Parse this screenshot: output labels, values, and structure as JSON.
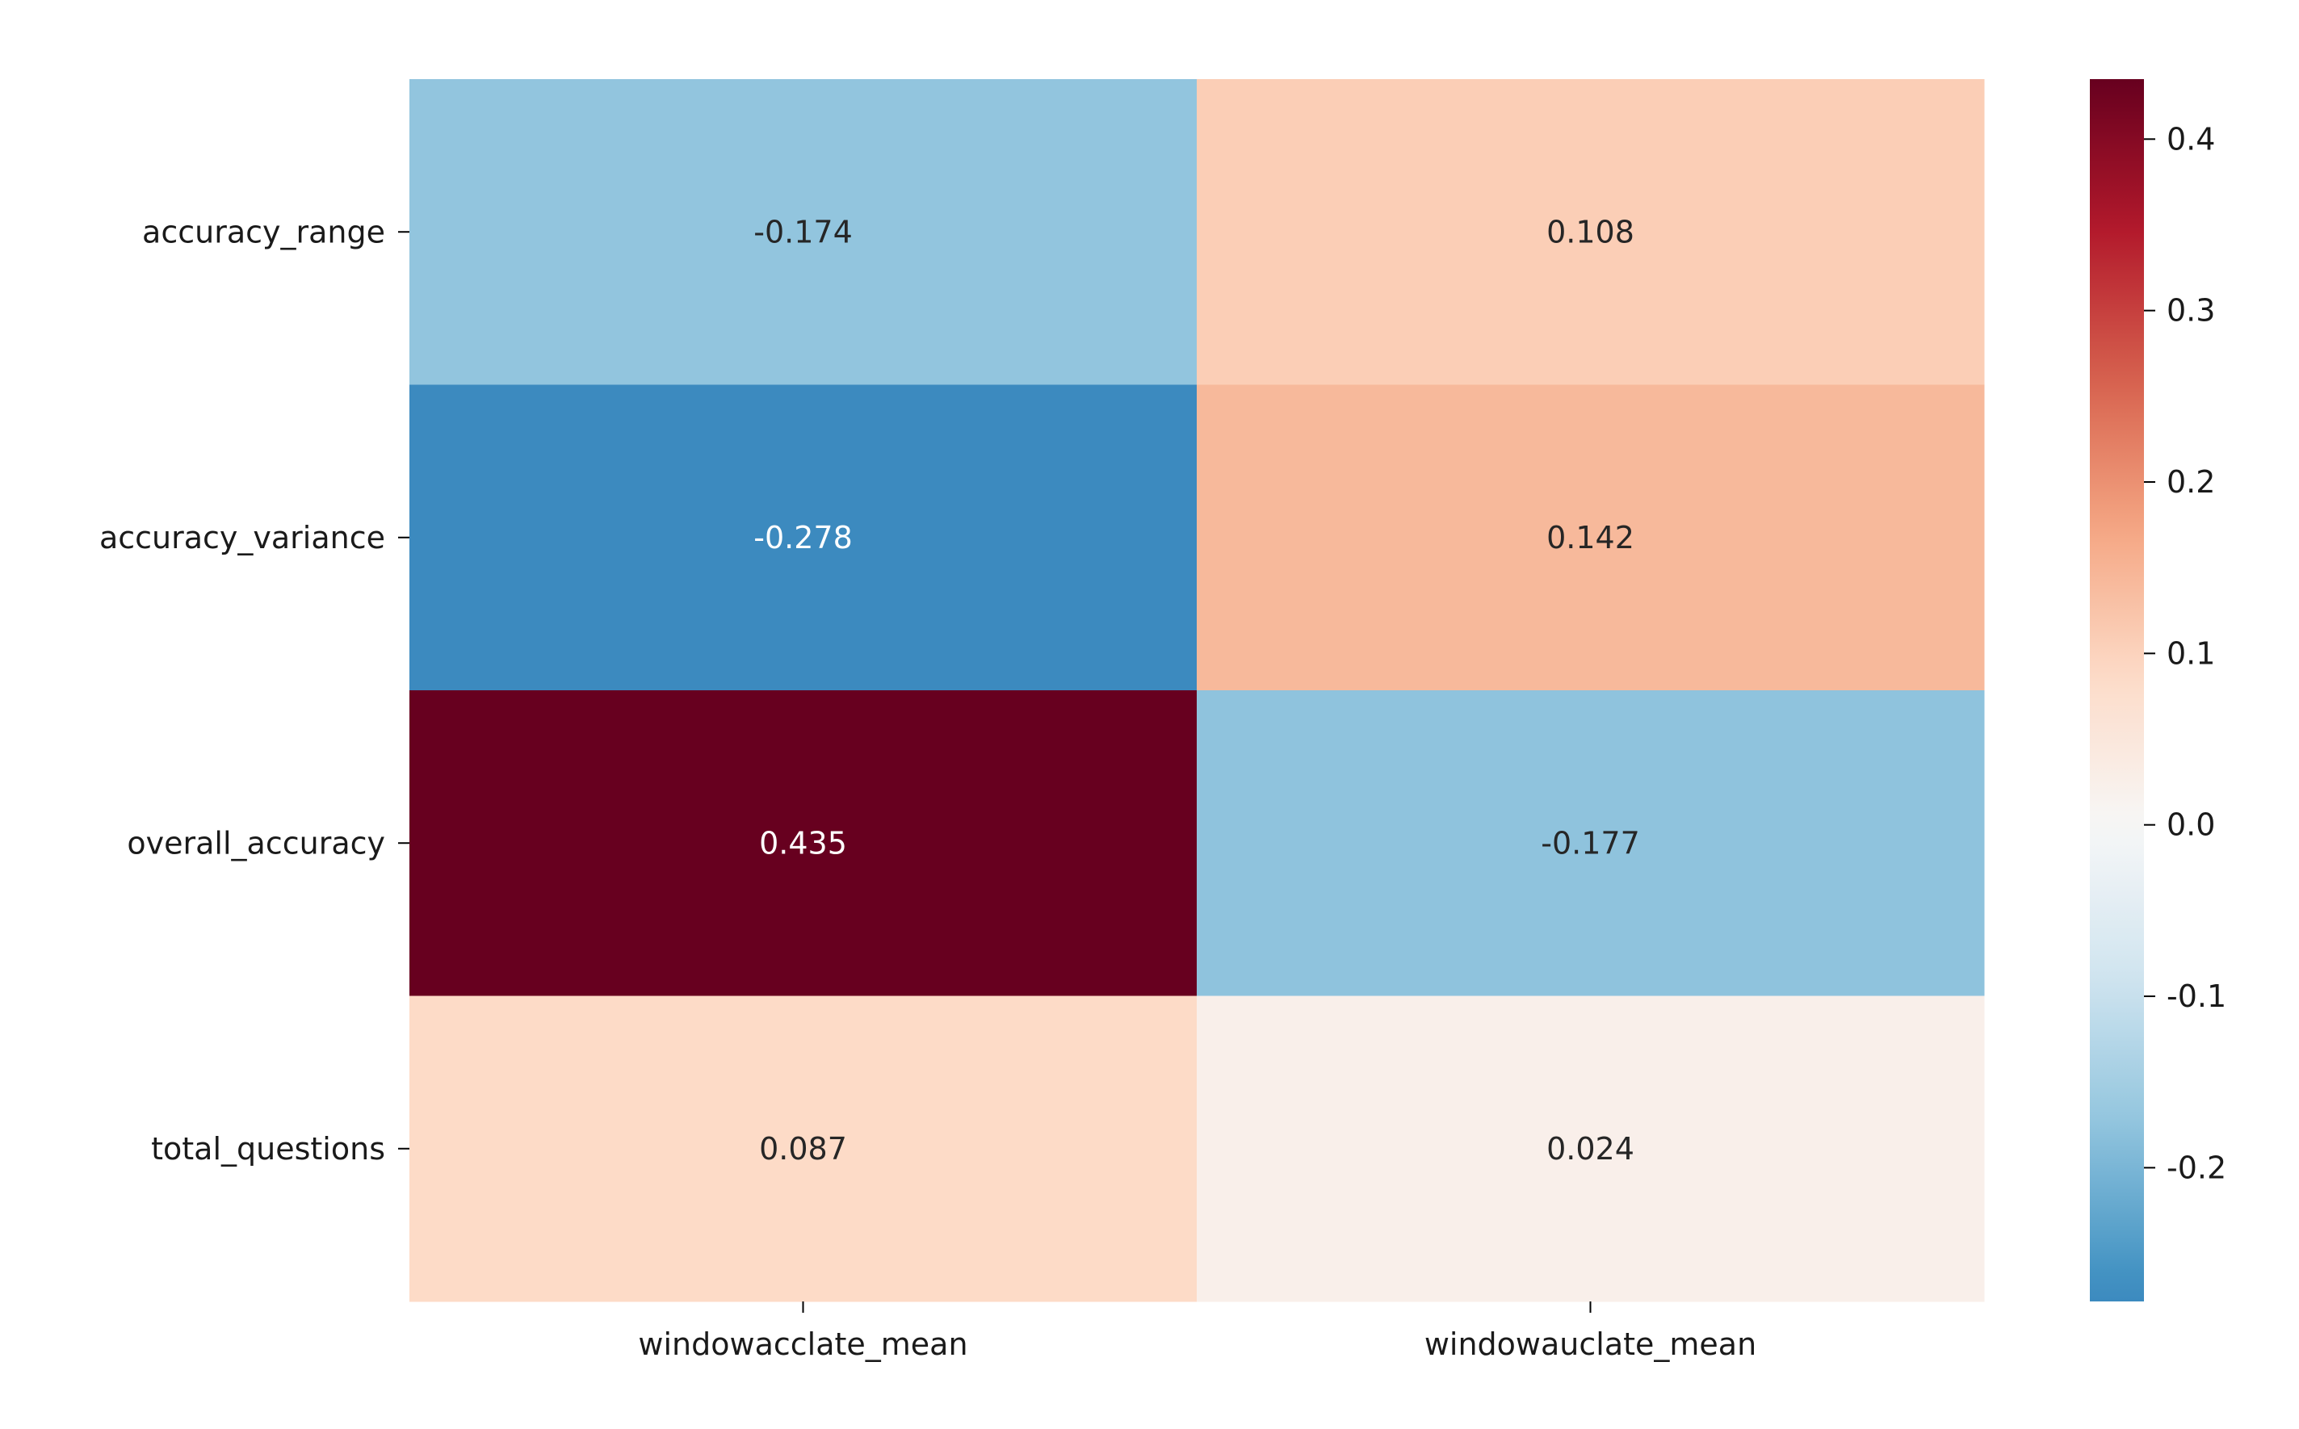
{
  "chart_data": {
    "type": "heatmap",
    "title": "",
    "xlabel": "",
    "ylabel": "",
    "x_categories": [
      "windowacclate_mean",
      "windowauclate_mean"
    ],
    "y_categories": [
      "accuracy_range",
      "accuracy_variance",
      "overall_accuracy",
      "total_questions"
    ],
    "values": [
      [
        -0.174,
        0.108
      ],
      [
        -0.278,
        0.142
      ],
      [
        0.435,
        -0.177
      ],
      [
        0.087,
        0.024
      ]
    ],
    "value_labels": [
      [
        "-0.174",
        "0.108"
      ],
      [
        "-0.278",
        "0.142"
      ],
      [
        "0.435",
        "-0.177"
      ],
      [
        "0.087",
        "0.024"
      ]
    ],
    "colormap": "RdBu_r",
    "vmin": -0.278,
    "vmax": 0.435,
    "colorbar": {
      "label": "",
      "ticks": [
        -0.2,
        -0.1,
        0.0,
        0.1,
        0.2,
        0.3,
        0.4
      ],
      "tick_labels": [
        "-0.2",
        "-0.1",
        "0.0",
        "0.1",
        "0.2",
        "0.3",
        "0.4"
      ]
    },
    "grid": false,
    "legend": "colorbar-right"
  }
}
